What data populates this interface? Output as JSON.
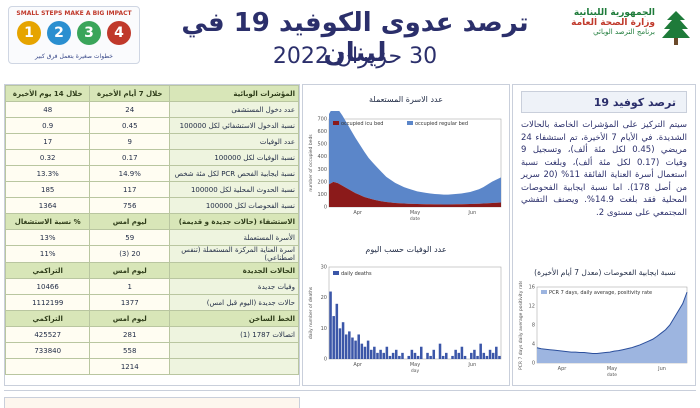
{
  "header": {
    "title": "ترصد عدوى الكوفيد 19 في لبنان",
    "date": "30 حزيران 2022"
  },
  "logo_left": {
    "title": "SMALL STEPS MAKE A BIG IMPACT",
    "steps": [
      "1",
      "2",
      "3",
      "4"
    ],
    "subtitle": "خطوات صغيرة بتعمل فرق كبير"
  },
  "logo_right": {
    "line1": "الجمهورية اللبنانية",
    "line2": "وزارة الصحة العامة",
    "line3": "برنامج الترصد الوبائي"
  },
  "table": {
    "head_main": [
      "المؤشرات الوبائية",
      "خلال 7 أيام الأخيرة",
      "خلال 14 يوم الأخيرة"
    ],
    "rows_main": [
      [
        "عدد دخول المستشفى",
        "24",
        "48"
      ],
      [
        "نسبة الدخول الاستشفائي لكل 100000",
        "0.45",
        "0.9"
      ],
      [
        "عدد الوفيات",
        "9",
        "17"
      ],
      [
        "نسبة الوفيات لكل 100000",
        "0.17",
        "0.32"
      ],
      [
        "نسبة ايجابية الفحص PCR لكل مئة شخص",
        "14.9%",
        "13.3%"
      ],
      [
        "نسبة الحدوث المحلية لكل 100000",
        "117",
        "185"
      ],
      [
        "نسبة الفحوصات لكل 100000",
        "756",
        "1364"
      ]
    ],
    "head_beds": [
      "الاستشفاء (حالات جديدة و قديمة)",
      "ليوم امس",
      "% نسبة الاستشغال"
    ],
    "rows_beds": [
      [
        "الأسرة المستعملة",
        "59",
        "13%"
      ],
      [
        "اسرة العناية المركزة المستعملة (تنفس اصطناعي)",
        "20 (3)",
        "11%"
      ]
    ],
    "head_cases": [
      "الحالات الجديدة",
      "ليوم امس",
      "التراكمي"
    ],
    "rows_cases": [
      [
        "وفيات جديدة",
        "1",
        "10466"
      ],
      [
        "حالات جديدة (اليوم قبل امس)",
        "1377",
        "1112199"
      ]
    ],
    "head_vax": [
      "الخط الساخن",
      "ليوم امس",
      "التراكمي"
    ],
    "rows_vax": [
      [
        "اتصالات 1787 (1)",
        "281",
        "425527"
      ],
      [
        "",
        "558",
        "733840"
      ],
      [
        "",
        "1214",
        ""
      ]
    ]
  },
  "charts": {
    "beds_title": "عدد الاسرة المستعملة",
    "deaths_title": "عدد الوفيات حسب اليوم",
    "positivity_title": "نسبة ايجابية الفحوصات (معدل 7 أيام الأخيرة)"
  },
  "chart_data": [
    {
      "type": "area",
      "legend": [
        "occupied icu bed",
        "occupied regular bed"
      ],
      "ylabel": "number of occupied beds",
      "xlabel": "date",
      "x_ticks": [
        "Apr",
        "May",
        "Jun"
      ],
      "ylim": [
        0,
        700
      ],
      "y_ticks": [
        0,
        100,
        200,
        300,
        400,
        500,
        600,
        700
      ],
      "series": [
        {
          "name": "occupied icu bed",
          "values": [
            180,
            200,
            190,
            170,
            150,
            130,
            110,
            95,
            80,
            70,
            60,
            52,
            45,
            40,
            36,
            32,
            30,
            28,
            26,
            25,
            24,
            23,
            22,
            22,
            21,
            21,
            20,
            20,
            21,
            22,
            22,
            23,
            24,
            25,
            26,
            28,
            30,
            32,
            34,
            36
          ]
        },
        {
          "name": "occupied regular bed",
          "values": [
            560,
            600,
            590,
            560,
            520,
            480,
            440,
            400,
            360,
            320,
            290,
            260,
            230,
            200,
            180,
            160,
            145,
            130,
            120,
            110,
            100,
            95,
            90,
            85,
            82,
            80,
            78,
            78,
            80,
            82,
            85,
            90,
            95,
            105,
            115,
            130,
            150,
            170,
            185,
            200
          ]
        }
      ]
    },
    {
      "type": "bar",
      "legend": [
        "daily deaths"
      ],
      "ylabel": "daily number of deaths",
      "xlabel": "day",
      "x_ticks": [
        "Apr",
        "May",
        "Jun"
      ],
      "ylim": [
        0,
        30
      ],
      "values": [
        22,
        14,
        18,
        10,
        12,
        8,
        9,
        7,
        6,
        8,
        5,
        4,
        6,
        3,
        4,
        2,
        3,
        2,
        4,
        1,
        2,
        3,
        1,
        2,
        0,
        1,
        3,
        2,
        1,
        4,
        0,
        2,
        1,
        3,
        0,
        5,
        1,
        2,
        0,
        1,
        3,
        2,
        4,
        1,
        0,
        2,
        3,
        1,
        5,
        2,
        1,
        3,
        2,
        4,
        1
      ]
    },
    {
      "type": "area",
      "legend": [
        "PCR 7 days, daily average, positivity rate"
      ],
      "ylabel": "PCR 7 days daily average positivity rate",
      "xlabel": "date",
      "x_ticks": [
        "Apr",
        "May",
        "Jun"
      ],
      "ylim": [
        0,
        16
      ],
      "values": [
        3.2,
        3.0,
        2.9,
        2.8,
        2.7,
        2.6,
        2.5,
        2.4,
        2.3,
        2.3,
        2.2,
        2.2,
        2.1,
        2.0,
        2.0,
        2.1,
        2.2,
        2.3,
        2.5,
        2.6,
        2.8,
        3.0,
        3.2,
        3.5,
        3.8,
        4.2,
        4.6,
        5.0,
        5.6,
        6.3,
        7.0,
        8.0,
        9.5,
        11.0,
        12.5,
        14.9
      ]
    }
  ],
  "info": {
    "title": "ترصد كوفيد 19",
    "body": "سيتم التركيز على المؤشرات الخاصة بالحالات الشديدة. في الأيام 7 الأخيرة، تم استشفاء 24 مريضي (0.45 لكل مئة ألف)، وتسجيل 9 وفيات (0.17 لكل مئة ألف)، وبلغت نسبة استعمال أسرة العناية الفائقة 11% (20 سرير من أصل 178). اما نسبة ايجابية الفحوصات المحلية فقد بلغت 14.9%. ويصنف التفشي المجتمعي على مستوى 2."
  }
}
